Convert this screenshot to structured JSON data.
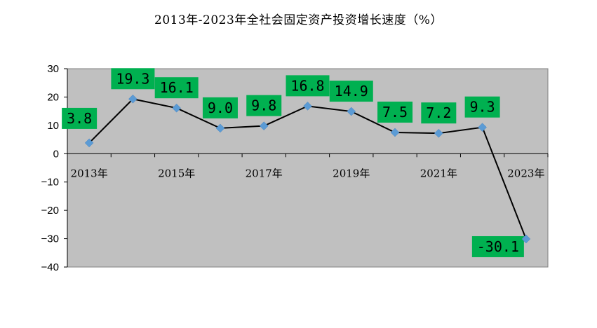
{
  "chart_data": {
    "type": "line",
    "title": "2013年-2023年全社会固定资产投资增长速度（%）",
    "categories": [
      "2013年",
      "2014年",
      "2015年",
      "2016年",
      "2017年",
      "2018年",
      "2019年",
      "2020年",
      "2021年",
      "2022年",
      "2023年"
    ],
    "x_tick_labels_shown": [
      "2013年",
      "2015年",
      "2017年",
      "2019年",
      "2021年",
      "2023年"
    ],
    "series": [
      {
        "values": [
          3.8,
          19.3,
          16.1,
          9.0,
          9.8,
          16.8,
          14.9,
          7.5,
          7.2,
          9.3,
          -30.1
        ]
      }
    ],
    "data_labels": [
      "3.8",
      "19.3",
      "16.1",
      "9.0",
      "9.8",
      "16.8",
      "14.9",
      "7.5",
      "7.2",
      "9.3",
      "-30.1"
    ],
    "ylim": [
      -40,
      30
    ],
    "yticks": [
      30,
      20,
      10,
      0,
      -10,
      -20,
      -30,
      -40
    ],
    "ytick_labels": [
      "30",
      "20",
      "10",
      "0",
      "−10",
      "−20",
      "−30",
      "−40"
    ],
    "grid": false,
    "legend": "none",
    "colors": {
      "plot_background": "#c0c0c0",
      "line": "#000000",
      "marker": "#5b9bd5",
      "label_box": "#00b050"
    }
  }
}
